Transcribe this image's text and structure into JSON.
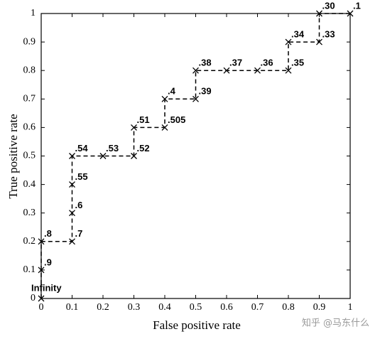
{
  "chart_data": {
    "type": "line",
    "x_label": "False positive rate",
    "y_label": "True positive rate",
    "x": [
      0,
      0,
      0,
      0.1,
      0.1,
      0.1,
      0.1,
      0.2,
      0.3,
      0.3,
      0.4,
      0.4,
      0.5,
      0.5,
      0.6,
      0.7,
      0.8,
      0.8,
      0.9,
      0.9,
      1
    ],
    "series": [
      {
        "color": "#000000",
        "values": [
          0,
          0.1,
          0.2,
          0.2,
          0.3,
          0.4,
          0.5,
          0.5,
          0.5,
          0.6,
          0.6,
          0.7,
          0.7,
          0.8,
          0.8,
          0.8,
          0.8,
          0.9,
          0.9,
          1,
          1
        ],
        "point_labels": [
          "Infinity",
          ".9",
          ".8",
          ".7",
          ".6",
          ".55",
          ".54",
          ".53",
          ".52",
          ".51",
          ".505",
          ".4",
          ".39",
          ".38",
          ".37",
          ".36",
          ".35",
          ".34",
          ".33",
          ".30",
          ".1"
        ]
      }
    ],
    "xlim": [
      0,
      1
    ],
    "ylim": [
      0,
      1
    ],
    "xticks": [
      0,
      0.1,
      0.2,
      0.3,
      0.4,
      0.5,
      0.6,
      0.7,
      0.8,
      0.9,
      1
    ],
    "yticks": [
      0,
      0.1,
      0.2,
      0.3,
      0.4,
      0.5,
      0.6,
      0.7,
      0.8,
      0.9,
      1
    ],
    "grid": false,
    "watermark": "知乎 @马东什么"
  }
}
